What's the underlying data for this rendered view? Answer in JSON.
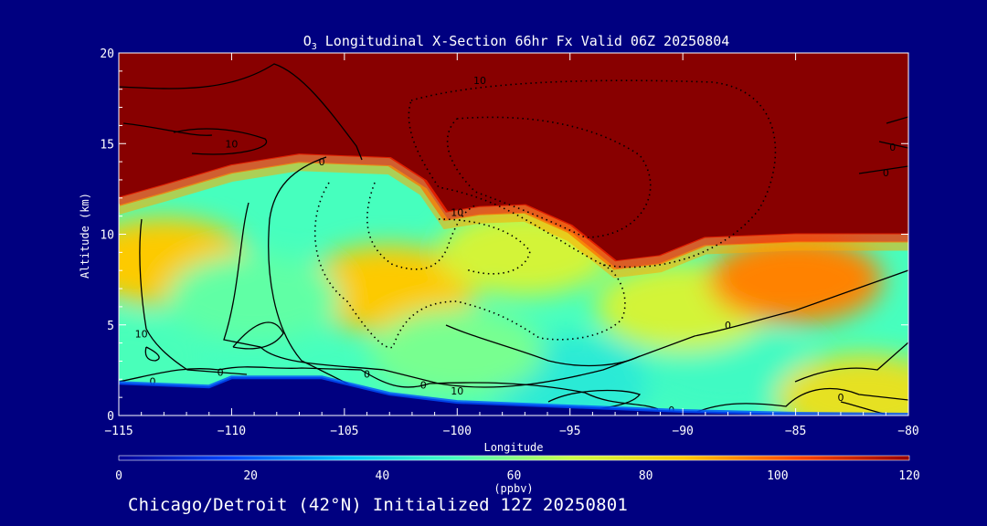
{
  "chart_data": {
    "type": "heatmap",
    "title": {
      "species": "O",
      "subscript": "3",
      "rest": " Longitudinal X-Section 66hr  Fx Valid 06Z 20250804"
    },
    "xlabel": "Longitude",
    "ylabel": "Altitude (km)",
    "xlim": [
      -115,
      -80
    ],
    "ylim": [
      0,
      20
    ],
    "x_ticks": [
      -115,
      -110,
      -105,
      -100,
      -95,
      -90,
      -85,
      -80
    ],
    "x_tick_labels": [
      "−115",
      "−110",
      "−105",
      "−100",
      "−95",
      "−90",
      "−85",
      "−80"
    ],
    "y_ticks": [
      0,
      5,
      10,
      15,
      20
    ],
    "y_tick_labels": [
      "0",
      "5",
      "10",
      "15",
      "20"
    ],
    "colorbar": {
      "label": "(ppbv)",
      "range": [
        0,
        120
      ],
      "ticks": [
        0,
        20,
        40,
        60,
        80,
        100,
        120
      ],
      "tick_labels": [
        "0",
        "20",
        "40",
        "60",
        "80",
        "100",
        "120"
      ],
      "colors": [
        "#000096",
        "#0046ff",
        "#00c8ff",
        "#46ffbe",
        "#c8ff46",
        "#ffc800",
        "#ff4600",
        "#960000"
      ]
    },
    "terrain_km": [
      [
        -115,
        1.8
      ],
      [
        -111,
        1.6
      ],
      [
        -110,
        2.1
      ],
      [
        -106,
        2.1
      ],
      [
        -103,
        1.2
      ],
      [
        -100,
        0.75
      ],
      [
        -95,
        0.5
      ],
      [
        -90,
        0.25
      ],
      [
        -85,
        0.1
      ],
      [
        -80,
        0.05
      ]
    ],
    "tropopause_km": [
      [
        -115,
        12.0
      ],
      [
        -113,
        12.7
      ],
      [
        -110,
        13.8
      ],
      [
        -107,
        14.4
      ],
      [
        -103,
        14.2
      ],
      [
        -101.5,
        13.0
      ],
      [
        -100.5,
        11.2
      ],
      [
        -99,
        11.5
      ],
      [
        -97,
        11.6
      ],
      [
        -95,
        10.5
      ],
      [
        -93,
        8.5
      ],
      [
        -91,
        8.8
      ],
      [
        -89,
        9.8
      ],
      [
        -85,
        10.0
      ],
      [
        -80,
        10.0
      ]
    ],
    "field_points": [
      {
        "lon": -113,
        "alt": 8.5,
        "ppbv": 85
      },
      {
        "lon": -103,
        "alt": 7.0,
        "ppbv": 85
      },
      {
        "lon": -97,
        "alt": 9.0,
        "ppbv": 72
      },
      {
        "lon": -109,
        "alt": 6.5,
        "ppbv": 55
      },
      {
        "lon": -95,
        "alt": 2.0,
        "ppbv": 45
      },
      {
        "lon": -88,
        "alt": 2.5,
        "ppbv": 50
      },
      {
        "lon": -90,
        "alt": 6.0,
        "ppbv": 72
      },
      {
        "lon": -100,
        "alt": 3.5,
        "ppbv": 58
      },
      {
        "lon": -82,
        "alt": 1.0,
        "ppbv": 78
      },
      {
        "lon": -115,
        "alt": 3.0,
        "ppbv": 52
      },
      {
        "lon": -85,
        "alt": 7.5,
        "ppbv": 95
      }
    ],
    "contour_labels": [
      {
        "text": "10",
        "lon": -99,
        "alt": 18.5
      },
      {
        "text": "10",
        "lon": -110,
        "alt": 15.0
      },
      {
        "text": "0",
        "lon": -106,
        "alt": 14.0
      },
      {
        "text": "10",
        "lon": -100,
        "alt": 11.2
      },
      {
        "text": "0",
        "lon": -80.7,
        "alt": 14.8
      },
      {
        "text": "0",
        "lon": -81,
        "alt": 13.4
      },
      {
        "text": "10",
        "lon": -114,
        "alt": 4.5
      },
      {
        "text": "0",
        "lon": -110.5,
        "alt": 2.4
      },
      {
        "text": "0",
        "lon": -113.5,
        "alt": 1.9
      },
      {
        "text": "0",
        "lon": -104,
        "alt": 2.3
      },
      {
        "text": "0",
        "lon": -101.5,
        "alt": 1.7
      },
      {
        "text": "10",
        "lon": -100,
        "alt": 1.35
      },
      {
        "text": "0",
        "lon": -88,
        "alt": 5.0
      },
      {
        "text": "0",
        "lon": -83,
        "alt": 1.0
      },
      {
        "text": "0",
        "lon": -90.5,
        "alt": 0.3
      }
    ]
  },
  "footer": "Chicago/Detroit (42°N) Initialized 12Z 20250801"
}
